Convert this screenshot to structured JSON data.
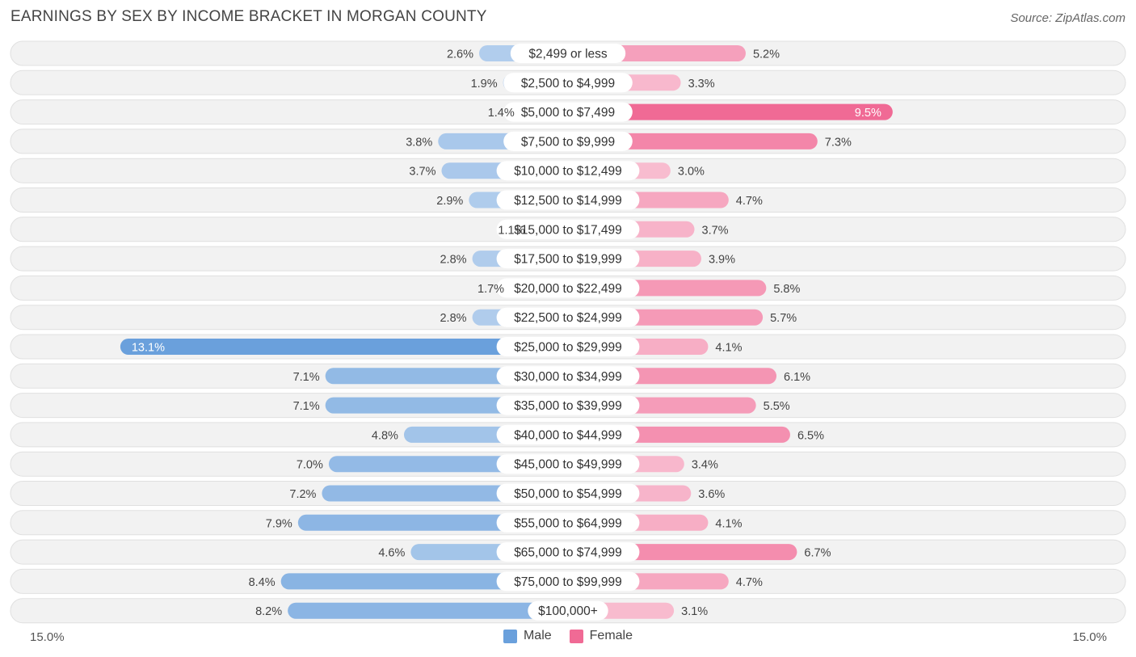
{
  "chart_data": {
    "type": "bar",
    "orientation": "horizontal-diverging",
    "title": "EARNINGS BY SEX BY INCOME BRACKET IN MORGAN COUNTY",
    "source": "Source: ZipAtlas.com",
    "categories": [
      "$2,499 or less",
      "$2,500 to $4,999",
      "$5,000 to $7,499",
      "$7,500 to $9,999",
      "$10,000 to $12,499",
      "$12,500 to $14,999",
      "$15,000 to $17,499",
      "$17,500 to $19,999",
      "$20,000 to $22,499",
      "$22,500 to $24,999",
      "$25,000 to $29,999",
      "$30,000 to $34,999",
      "$35,000 to $39,999",
      "$40,000 to $44,999",
      "$45,000 to $49,999",
      "$50,000 to $54,999",
      "$55,000 to $64,999",
      "$65,000 to $74,999",
      "$75,000 to $99,999",
      "$100,000+"
    ],
    "series": [
      {
        "name": "Male",
        "color": "#6aa0dc",
        "values": [
          2.6,
          1.9,
          1.4,
          3.8,
          3.7,
          2.9,
          1.1,
          2.8,
          1.7,
          2.8,
          13.1,
          7.1,
          7.1,
          4.8,
          7.0,
          7.2,
          7.9,
          4.6,
          8.4,
          8.2
        ],
        "labels": [
          "2.6%",
          "1.9%",
          "1.4%",
          "3.8%",
          "3.7%",
          "2.9%",
          "1.1%",
          "2.8%",
          "1.7%",
          "2.8%",
          "13.1%",
          "7.1%",
          "7.1%",
          "4.8%",
          "7.0%",
          "7.2%",
          "7.9%",
          "4.6%",
          "8.4%",
          "8.2%"
        ]
      },
      {
        "name": "Female",
        "color": "#f06a95",
        "values": [
          5.2,
          3.3,
          9.5,
          7.3,
          3.0,
          4.7,
          3.7,
          3.9,
          5.8,
          5.7,
          4.1,
          6.1,
          5.5,
          6.5,
          3.4,
          3.6,
          4.1,
          6.7,
          4.7,
          3.1
        ],
        "labels": [
          "5.2%",
          "3.3%",
          "9.5%",
          "7.3%",
          "3.0%",
          "4.7%",
          "3.7%",
          "3.9%",
          "5.8%",
          "5.7%",
          "4.1%",
          "6.1%",
          "5.5%",
          "6.5%",
          "3.4%",
          "3.6%",
          "4.1%",
          "6.7%",
          "4.7%",
          "3.1%"
        ]
      }
    ],
    "xlim": [
      -15.0,
      15.0
    ],
    "axis_left_label": "15.0%",
    "axis_right_label": "15.0%",
    "legend": [
      {
        "label": "Male",
        "color": "#6aa0dc"
      },
      {
        "label": "Female",
        "color": "#f06a95"
      }
    ],
    "legend_position": "bottom-center"
  }
}
